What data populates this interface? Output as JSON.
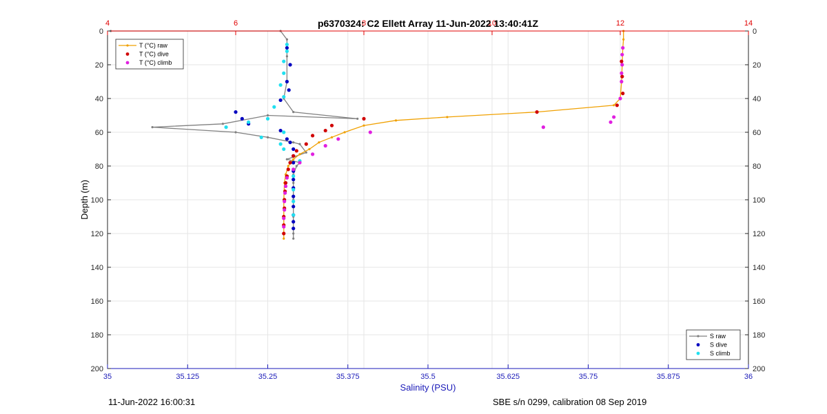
{
  "chart_data": {
    "type": "scatter",
    "title": "p6370324: C2 Ellett Array 11-Jun-2022 13:40:41Z",
    "ylabel": "Depth (m)",
    "xlabel": "Salinity (PSU)",
    "y_reversed": true,
    "ylim": [
      0,
      200
    ],
    "y_ticks": [
      0,
      20,
      40,
      60,
      80,
      100,
      120,
      140,
      160,
      180,
      200
    ],
    "x_salinity": {
      "lim": [
        35,
        36
      ],
      "ticks": [
        "35",
        "35.125",
        "35.25",
        "35.375",
        "35.5",
        "35.625",
        "35.75",
        "35.875",
        "36"
      ],
      "color": "#1a1ab8"
    },
    "x_temperature": {
      "lim": [
        4,
        14
      ],
      "ticks": [
        "4",
        "6",
        "8",
        "10",
        "12",
        "14"
      ],
      "color": "#e00000"
    },
    "grid": true,
    "legend_temperature": {
      "position": "top-left",
      "entries": [
        "T (°C) raw",
        "T (°C) dive",
        "T (°C) climb"
      ]
    },
    "legend_salinity": {
      "position": "bottom-right",
      "entries": [
        "S raw",
        "S dive",
        "S climb"
      ]
    },
    "series": [
      {
        "name": "T (°C) raw",
        "axis": "temperature",
        "style": "line-marker",
        "color": "#f0a000",
        "points": [
          [
            12.05,
            0
          ],
          [
            12.05,
            5
          ],
          [
            12.04,
            10
          ],
          [
            12.03,
            20
          ],
          [
            12.02,
            30
          ],
          [
            12.0,
            40
          ],
          [
            11.9,
            44
          ],
          [
            10.7,
            48
          ],
          [
            9.3,
            51
          ],
          [
            8.5,
            53
          ],
          [
            8.0,
            56
          ],
          [
            7.7,
            60
          ],
          [
            7.5,
            63
          ],
          [
            7.3,
            66
          ],
          [
            7.15,
            70
          ],
          [
            7.0,
            73
          ],
          [
            6.9,
            76
          ],
          [
            6.82,
            80
          ],
          [
            6.78,
            85
          ],
          [
            6.76,
            90
          ],
          [
            6.75,
            100
          ],
          [
            6.75,
            110
          ],
          [
            6.75,
            120
          ],
          [
            6.75,
            123
          ]
        ]
      },
      {
        "name": "T (°C) dive",
        "axis": "temperature",
        "style": "marker",
        "color": "#d00000",
        "points": [
          [
            12.02,
            18
          ],
          [
            12.03,
            27
          ],
          [
            12.04,
            37
          ],
          [
            11.95,
            44
          ],
          [
            10.7,
            48
          ],
          [
            8.0,
            52
          ],
          [
            7.5,
            56
          ],
          [
            7.4,
            59
          ],
          [
            7.2,
            62
          ],
          [
            7.1,
            67
          ],
          [
            6.95,
            71
          ],
          [
            6.9,
            74
          ],
          [
            6.85,
            78
          ],
          [
            6.82,
            82
          ],
          [
            6.8,
            86
          ],
          [
            6.78,
            90
          ],
          [
            6.77,
            95
          ],
          [
            6.76,
            100
          ],
          [
            6.76,
            105
          ],
          [
            6.75,
            110
          ],
          [
            6.75,
            115
          ],
          [
            6.75,
            120
          ]
        ]
      },
      {
        "name": "T (°C) climb",
        "axis": "temperature",
        "style": "marker",
        "color": "#e020e0",
        "points": [
          [
            12.04,
            10
          ],
          [
            12.03,
            14
          ],
          [
            12.03,
            20
          ],
          [
            12.02,
            25
          ],
          [
            12.02,
            30
          ],
          [
            12.0,
            40
          ],
          [
            11.9,
            51
          ],
          [
            11.85,
            54
          ],
          [
            10.8,
            57
          ],
          [
            8.1,
            60
          ],
          [
            7.6,
            64
          ],
          [
            7.4,
            68
          ],
          [
            7.2,
            73
          ],
          [
            7.0,
            78
          ],
          [
            6.9,
            82
          ],
          [
            6.8,
            87
          ],
          [
            6.78,
            92
          ],
          [
            6.77,
            96
          ],
          [
            6.76,
            101
          ],
          [
            6.76,
            106
          ],
          [
            6.75,
            111
          ],
          [
            6.75,
            116
          ]
        ]
      },
      {
        "name": "S raw",
        "axis": "salinity",
        "style": "line-marker",
        "color": "#808080",
        "points": [
          [
            35.005,
            0
          ],
          [
            35.27,
            0
          ],
          [
            35.28,
            5
          ],
          [
            35.28,
            15
          ],
          [
            35.28,
            30
          ],
          [
            35.275,
            40
          ],
          [
            35.29,
            48
          ],
          [
            35.39,
            52
          ],
          [
            35.25,
            50
          ],
          [
            35.18,
            55
          ],
          [
            35.07,
            57
          ],
          [
            35.2,
            60
          ],
          [
            35.25,
            63
          ],
          [
            35.29,
            66
          ],
          [
            35.3,
            67
          ],
          [
            35.31,
            72
          ],
          [
            35.28,
            76
          ],
          [
            35.3,
            78
          ],
          [
            35.295,
            80
          ],
          [
            35.29,
            85
          ],
          [
            35.29,
            90
          ],
          [
            35.29,
            100
          ],
          [
            35.29,
            110
          ],
          [
            35.29,
            120
          ],
          [
            35.29,
            123
          ]
        ]
      },
      {
        "name": "S dive",
        "axis": "salinity",
        "style": "marker",
        "color": "#0000c0",
        "points": [
          [
            35.28,
            10
          ],
          [
            35.285,
            20
          ],
          [
            35.28,
            30
          ],
          [
            35.283,
            35
          ],
          [
            35.27,
            41
          ],
          [
            35.2,
            48
          ],
          [
            35.21,
            52
          ],
          [
            35.22,
            55
          ],
          [
            35.27,
            59
          ],
          [
            35.28,
            64
          ],
          [
            35.285,
            66
          ],
          [
            35.29,
            70
          ],
          [
            35.29,
            74
          ],
          [
            35.29,
            78
          ],
          [
            35.29,
            83
          ],
          [
            35.29,
            88
          ],
          [
            35.29,
            93
          ],
          [
            35.29,
            98
          ],
          [
            35.29,
            104
          ],
          [
            35.29,
            109
          ],
          [
            35.29,
            113
          ],
          [
            35.29,
            117
          ]
        ]
      },
      {
        "name": "S climb",
        "axis": "salinity",
        "style": "marker",
        "color": "#20e0f0",
        "points": [
          [
            35.28,
            8
          ],
          [
            35.28,
            12
          ],
          [
            35.275,
            18
          ],
          [
            35.275,
            25
          ],
          [
            35.27,
            32
          ],
          [
            35.275,
            39
          ],
          [
            35.26,
            45
          ],
          [
            35.25,
            52
          ],
          [
            35.22,
            54
          ],
          [
            35.185,
            57
          ],
          [
            35.275,
            60
          ],
          [
            35.24,
            63
          ],
          [
            35.27,
            67
          ],
          [
            35.275,
            70
          ],
          [
            35.3,
            77
          ],
          [
            35.29,
            86
          ],
          [
            35.29,
            94
          ],
          [
            35.29,
            101
          ],
          [
            35.29,
            109
          ]
        ]
      }
    ]
  },
  "footer": {
    "left": "11-Jun-2022 16:00:31",
    "right": "SBE s/n 0299, calibration 08 Sep 2019"
  },
  "colors": {
    "temperature_axis": "#e00000",
    "salinity_axis": "#1a1ab8",
    "grid": "#e6e6e6",
    "axis": "#262626"
  }
}
